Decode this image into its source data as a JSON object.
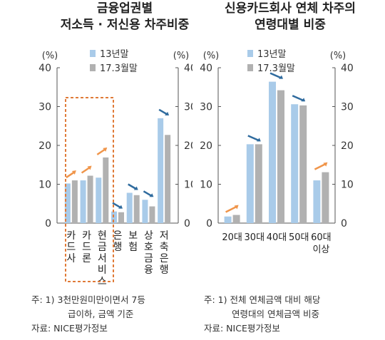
{
  "left_panel": {
    "title_line1": "금융업권별",
    "title_line2": "저소득 · 저신용  차주비중",
    "notes": [
      "주: 1) 3천만원미만이면서 7등",
      "급이하, 금액 기준",
      "자료: NICE평가정보"
    ]
  },
  "right_panel": {
    "title_line1": "신용카드회사 연체 차주의",
    "title_line2": "연령대별 비중",
    "notes": [
      "주: 1) 전체 연체금액 대비 해당",
      "연령대의 연체금액 비중",
      "자료: NICE평가정보"
    ]
  },
  "colors": {
    "series1": "#a9cbe9",
    "series2": "#b1b1b1",
    "arrow_up": "#f0954a",
    "arrow_down": "#2f6b9e",
    "highlight_box": "#e07b39"
  },
  "chart_data": [
    {
      "type": "bar",
      "categories": [
        "카드사",
        "카드론",
        "현금서비스",
        "은행",
        "보험",
        "상호금융",
        "저축은행"
      ],
      "series": [
        {
          "name": "13년말",
          "values": [
            10.2,
            11.0,
            11.7,
            3.0,
            7.8,
            6.0,
            27.0
          ]
        },
        {
          "name": "17.3월말",
          "values": [
            11.0,
            12.2,
            16.9,
            2.8,
            7.2,
            4.3,
            22.7
          ]
        }
      ],
      "ylim": [
        0,
        40
      ],
      "yticks": [
        0,
        10,
        20,
        30,
        40
      ],
      "unit_left": "(%)",
      "unit_right": "(%)",
      "legend_position": "top-left"
    },
    {
      "type": "bar",
      "categories": [
        "20대",
        "30대",
        "40대",
        "50대",
        "60대 이상"
      ],
      "series": [
        {
          "name": "13년말",
          "values": [
            1.7,
            20.3,
            36.4,
            30.6,
            11.0
          ]
        },
        {
          "name": "17.3월말",
          "values": [
            2.1,
            20.3,
            34.2,
            30.3,
            13.1
          ]
        }
      ],
      "ylim": [
        0,
        40
      ],
      "yticks": [
        0,
        10,
        20,
        30,
        40
      ],
      "unit_left": "(%)",
      "unit_right": "(%)",
      "legend_position": "top-left"
    }
  ]
}
